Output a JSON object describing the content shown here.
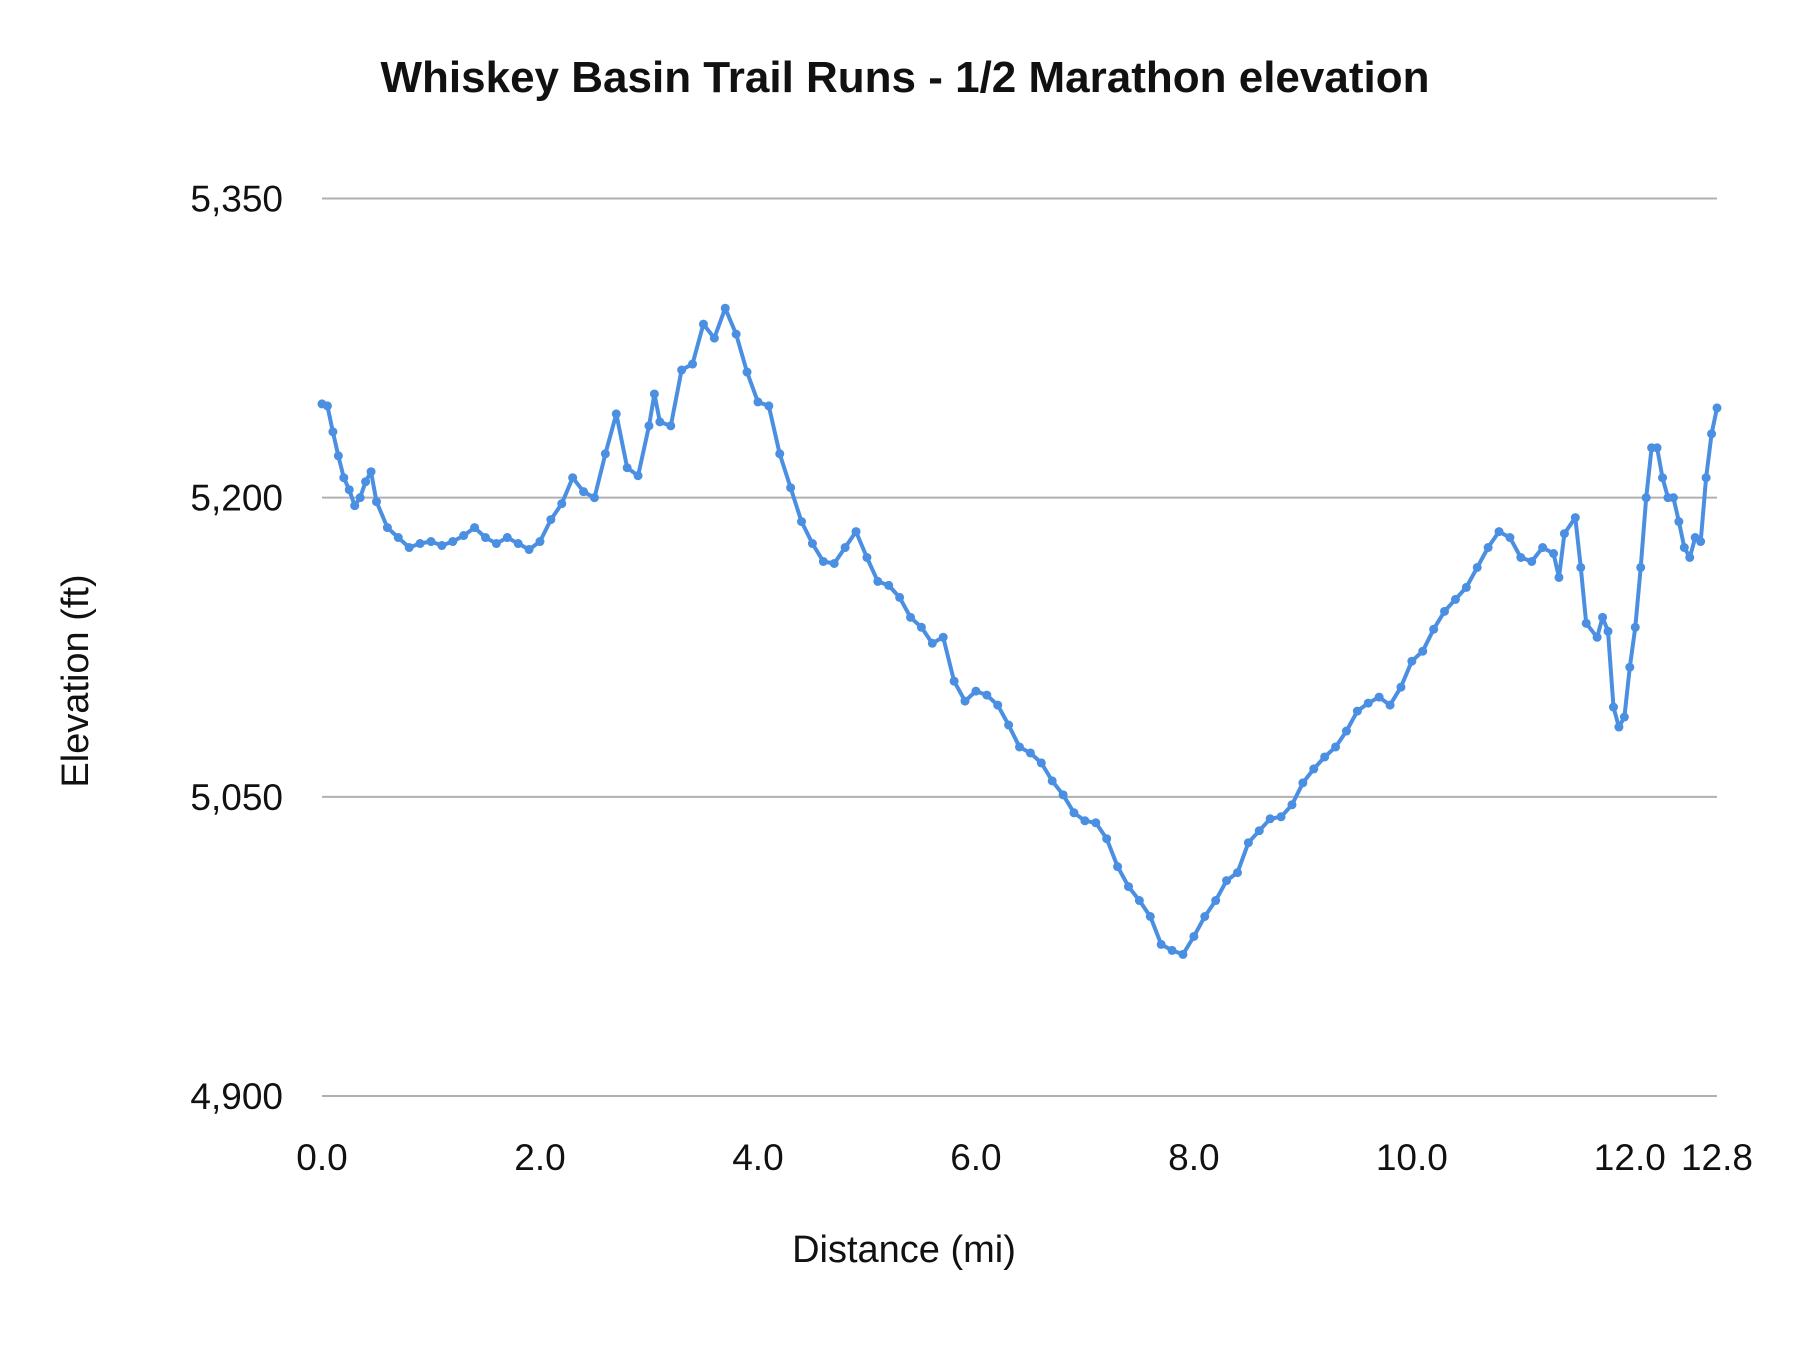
{
  "chart_data": {
    "type": "line",
    "title": "Whiskey Basin Trail Runs - 1/2 Marathon elevation",
    "xlabel": "Distance (mi)",
    "ylabel": "Elevation (ft)",
    "xlim": [
      0,
      12.8
    ],
    "ylim": [
      4900,
      5350
    ],
    "x_ticks": [
      "0.0",
      "2.0",
      "4.0",
      "6.0",
      "8.0",
      "10.0",
      "12.0",
      "12.8"
    ],
    "x_tick_values": [
      0,
      2,
      4,
      6,
      8,
      10,
      12,
      12.8
    ],
    "y_ticks": [
      "4,900",
      "5,050",
      "5,200",
      "5,350"
    ],
    "y_tick_values": [
      4900,
      5050,
      5200,
      5350
    ],
    "grid": "horizontal",
    "markers": true,
    "color": "#4a8fe2",
    "series": [
      {
        "x": [
          0.0,
          0.05,
          0.1,
          0.15,
          0.2,
          0.25,
          0.3,
          0.35,
          0.4,
          0.45,
          0.5,
          0.6,
          0.7,
          0.8,
          0.9,
          1.0,
          1.1,
          1.2,
          1.3,
          1.4,
          1.5,
          1.6,
          1.7,
          1.8,
          1.9,
          2.0,
          2.1,
          2.2,
          2.3,
          2.4,
          2.5,
          2.6,
          2.7,
          2.8,
          2.9,
          3.0,
          3.05,
          3.1,
          3.2,
          3.3,
          3.4,
          3.5,
          3.6,
          3.7,
          3.8,
          3.9,
          4.0,
          4.1,
          4.2,
          4.3,
          4.4,
          4.5,
          4.6,
          4.7,
          4.8,
          4.9,
          5.0,
          5.1,
          5.2,
          5.3,
          5.4,
          5.5,
          5.6,
          5.7,
          5.8,
          5.9,
          6.0,
          6.1,
          6.2,
          6.3,
          6.4,
          6.5,
          6.6,
          6.7,
          6.8,
          6.9,
          7.0,
          7.1,
          7.2,
          7.3,
          7.4,
          7.5,
          7.6,
          7.7,
          7.8,
          7.9,
          8.0,
          8.1,
          8.2,
          8.3,
          8.4,
          8.5,
          8.6,
          8.7,
          8.8,
          8.9,
          9.0,
          9.1,
          9.2,
          9.3,
          9.4,
          9.5,
          9.6,
          9.7,
          9.8,
          9.9,
          10.0,
          10.1,
          10.2,
          10.3,
          10.4,
          10.5,
          10.6,
          10.7,
          10.8,
          10.9,
          11.0,
          11.1,
          11.2,
          11.3,
          11.35,
          11.4,
          11.5,
          11.55,
          11.6,
          11.7,
          11.75,
          11.8,
          11.85,
          11.9,
          11.95,
          12.0,
          12.05,
          12.1,
          12.15,
          12.2,
          12.25,
          12.3,
          12.35,
          12.4,
          12.45,
          12.5,
          12.55,
          12.6,
          12.65,
          12.7,
          12.75,
          12.8
        ],
        "y": [
          5247,
          5246,
          5233,
          5221,
          5210,
          5204,
          5196,
          5200,
          5208,
          5213,
          5198,
          5185,
          5180,
          5175,
          5177,
          5178,
          5176,
          5178,
          5181,
          5185,
          5180,
          5177,
          5180,
          5177,
          5174,
          5178,
          5189,
          5197,
          5210,
          5203,
          5200,
          5222,
          5242,
          5215,
          5211,
          5236,
          5252,
          5238,
          5236,
          5264,
          5267,
          5287,
          5280,
          5295,
          5282,
          5263,
          5248,
          5246,
          5222,
          5205,
          5188,
          5177,
          5168,
          5167,
          5175,
          5183,
          5170,
          5158,
          5156,
          5150,
          5140,
          5135,
          5127,
          5130,
          5108,
          5098,
          5103,
          5101,
          5096,
          5086,
          5075,
          5072,
          5067,
          5058,
          5051,
          5042,
          5038,
          5037,
          5029,
          5015,
          5005,
          4998,
          4990,
          4976,
          4973,
          4971,
          4980,
          4990,
          4998,
          5008,
          5012,
          5027,
          5033,
          5039,
          5040,
          5046,
          5057,
          5064,
          5070,
          5075,
          5083,
          5093,
          5097,
          5100,
          5096,
          5105,
          5118,
          5123,
          5134,
          5143,
          5149,
          5155,
          5165,
          5175,
          5183,
          5180,
          5170,
          5168,
          5175,
          5172,
          5160,
          5182,
          5190,
          5165,
          5137,
          5130,
          5140,
          5133,
          5095,
          5085,
          5090,
          5115,
          5135,
          5165,
          5200,
          5225,
          5225,
          5210,
          5200,
          5200,
          5188,
          5175,
          5170,
          5180,
          5178,
          5210,
          5232,
          5245
        ]
      }
    ]
  }
}
